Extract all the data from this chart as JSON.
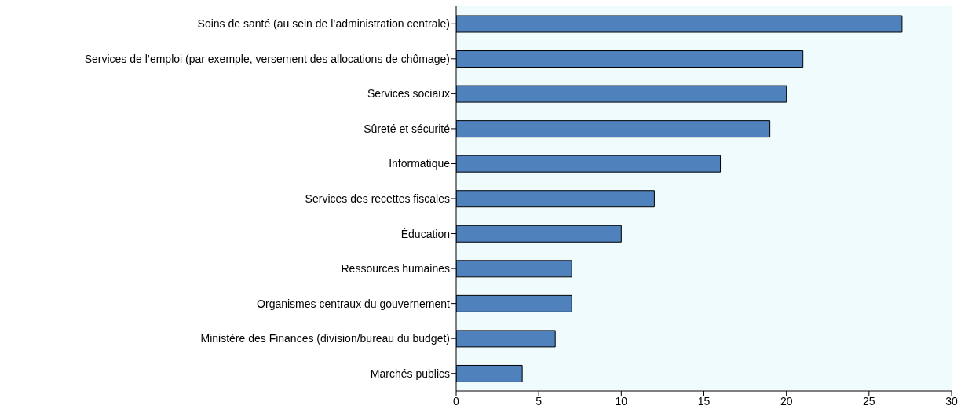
{
  "chart_data": {
    "type": "bar",
    "orientation": "horizontal",
    "categories": [
      "Soins de santé (au sein de l’administration centrale)",
      "Services de l’emploi (par exemple, versement des allocations de chômage)",
      "Services sociaux",
      "Sûreté et sécurité",
      "Informatique",
      "Services des recettes fiscales",
      "Éducation",
      "Ressources humaines",
      "Organismes centraux du gouvernement",
      "Ministère des Finances (division/bureau du budget)",
      "Marchés publics"
    ],
    "values": [
      27,
      21,
      20,
      19,
      16,
      12,
      10,
      7,
      7,
      6,
      4
    ],
    "color": "#4f81bd",
    "xlim": [
      0,
      30
    ],
    "xticks": [
      0,
      5,
      10,
      15,
      20,
      25,
      30
    ],
    "grid": false,
    "legend": false
  }
}
